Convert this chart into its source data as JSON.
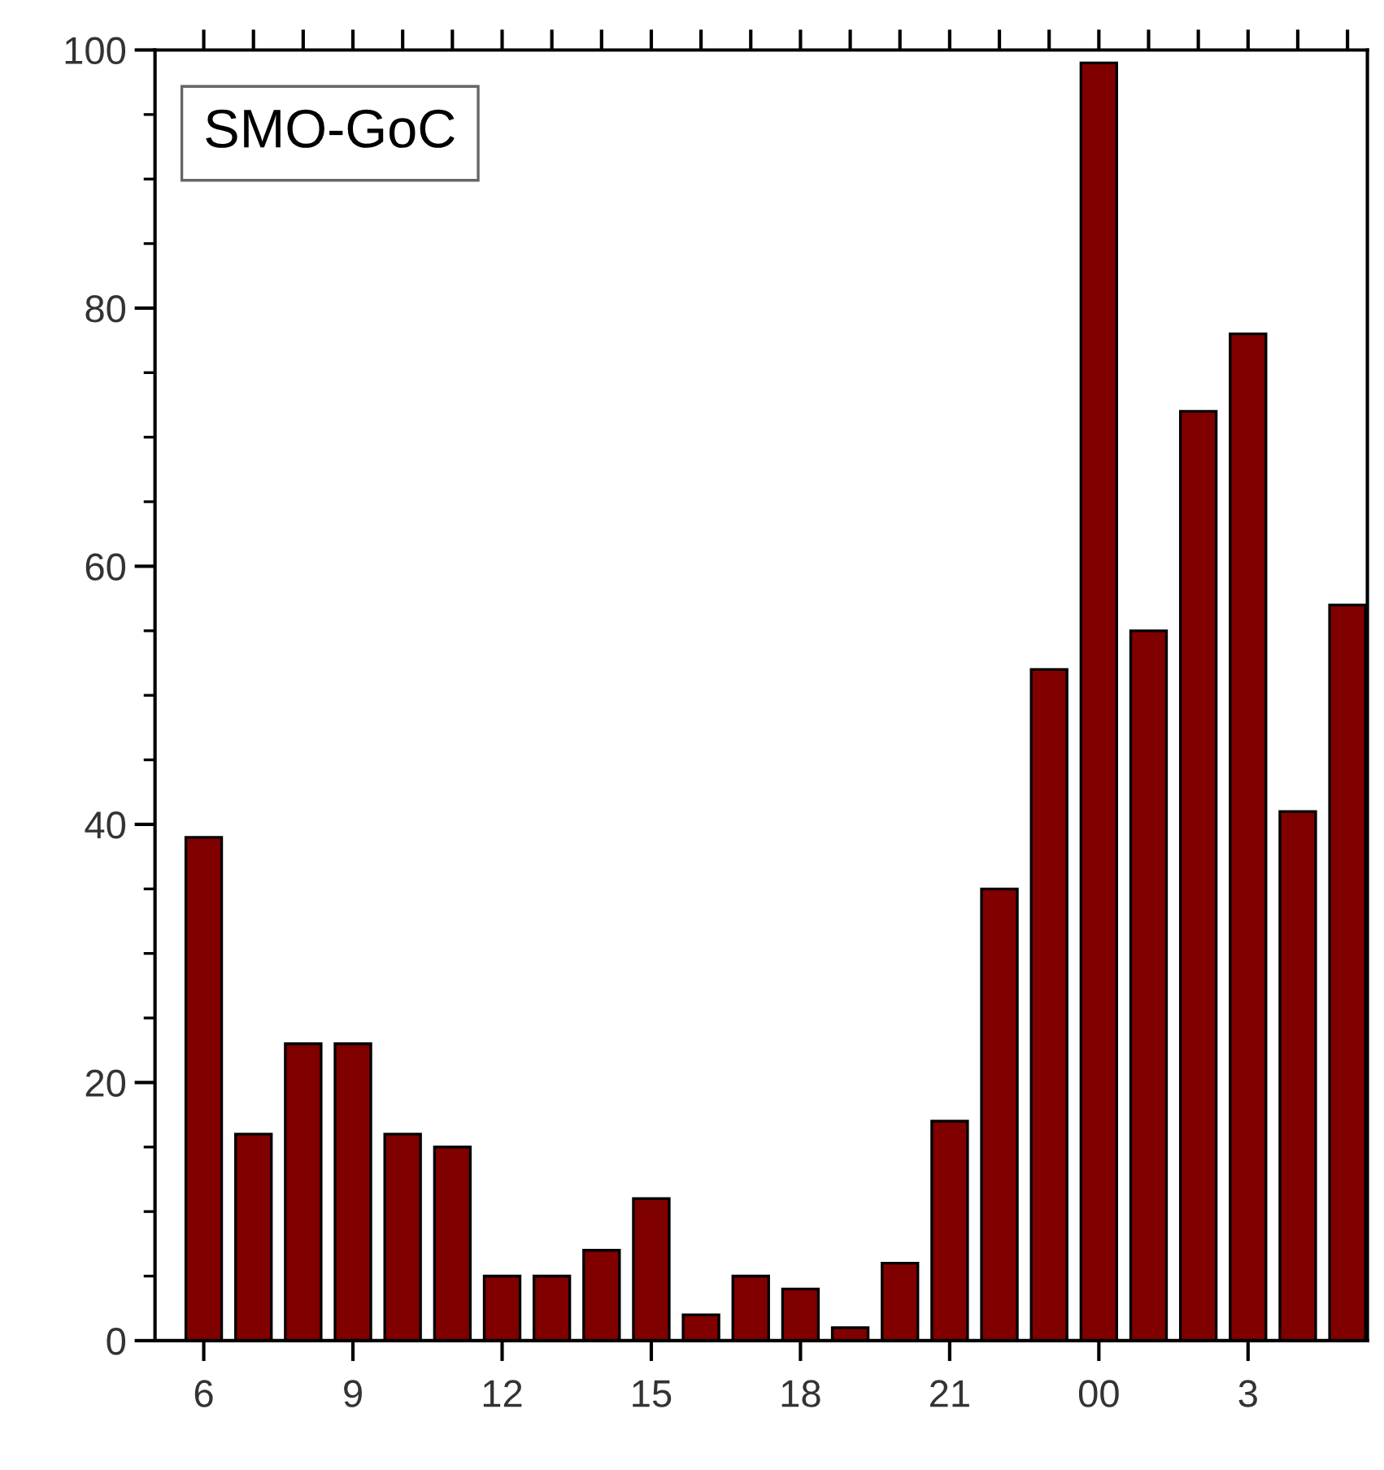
{
  "chart_data": {
    "type": "bar",
    "title": "SMO-GoC",
    "categories": [
      "6",
      null,
      null,
      "9",
      null,
      null,
      "12",
      null,
      null,
      "15",
      null,
      null,
      "18",
      null,
      null,
      "21",
      null,
      null,
      "00",
      null,
      null,
      "3",
      null,
      null
    ],
    "values": [
      39,
      16,
      23,
      23,
      16,
      15,
      5,
      5,
      7,
      11,
      2,
      5,
      4,
      1,
      6,
      17,
      35,
      52,
      99,
      55,
      72,
      78,
      41,
      57
    ],
    "color": "#800000",
    "ylim": [
      0,
      100
    ],
    "yticks": [
      0,
      20,
      40,
      60,
      80,
      100
    ],
    "grid": false
  }
}
